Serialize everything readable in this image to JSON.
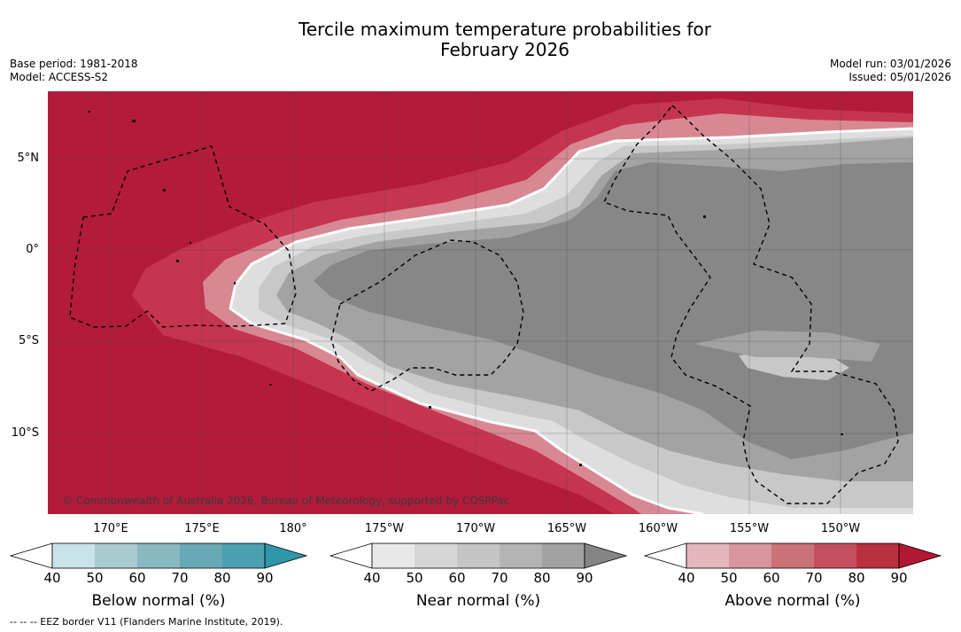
{
  "title": {
    "line1": "Tercile maximum temperature probabilities for",
    "line2": "February 2026"
  },
  "meta": {
    "base_period": "Base period: 1981-2018",
    "model": "Model: ACCESS-S2",
    "model_run": "Model run: 03/01/2026",
    "issued": "Issued: 05/01/2026"
  },
  "map": {
    "copyright": "© Commonwealth of Australia 2026, Bureau of Meteorology, supported by COSPPac",
    "lat_labels": [
      "5°N",
      "0°",
      "5°S",
      "10°S"
    ],
    "lon_labels": [
      "170°E",
      "175°E",
      "180°",
      "175°W",
      "170°W",
      "165°W",
      "160°W",
      "155°W",
      "150°W"
    ],
    "colors": {
      "above_dark": "#b31b3a",
      "above_mid": "#c5354f",
      "above_light": "#d88893",
      "near_dark": "#878787",
      "near_mid": "#a3a3a3",
      "near_light": "#c8c8c8",
      "near_pale": "#dedede"
    }
  },
  "colorbars": {
    "below": {
      "title": "Below normal (%)",
      "ticks": [
        "40",
        "50",
        "60",
        "70",
        "80",
        "90"
      ],
      "colors": [
        "#c8e3e9",
        "#a8cbd1",
        "#88b8c2",
        "#68a9b6",
        "#4aa0b0",
        "#2e97aa"
      ]
    },
    "near": {
      "title": "Near normal (%)",
      "ticks": [
        "40",
        "50",
        "60",
        "70",
        "80",
        "90"
      ],
      "colors": [
        "#e8e8e8",
        "#d6d6d6",
        "#c5c5c5",
        "#b4b4b4",
        "#a2a2a2",
        "#858585"
      ]
    },
    "above": {
      "title": "Above normal (%)",
      "ticks": [
        "40",
        "50",
        "60",
        "70",
        "80",
        "90"
      ],
      "colors": [
        "#e4b7bd",
        "#d8959d",
        "#cb7178",
        "#c4505f",
        "#b9303f",
        "#b41731"
      ]
    }
  },
  "footer": "--  --  -- EEZ border V11 (Flanders Marine Institute, 2019)."
}
